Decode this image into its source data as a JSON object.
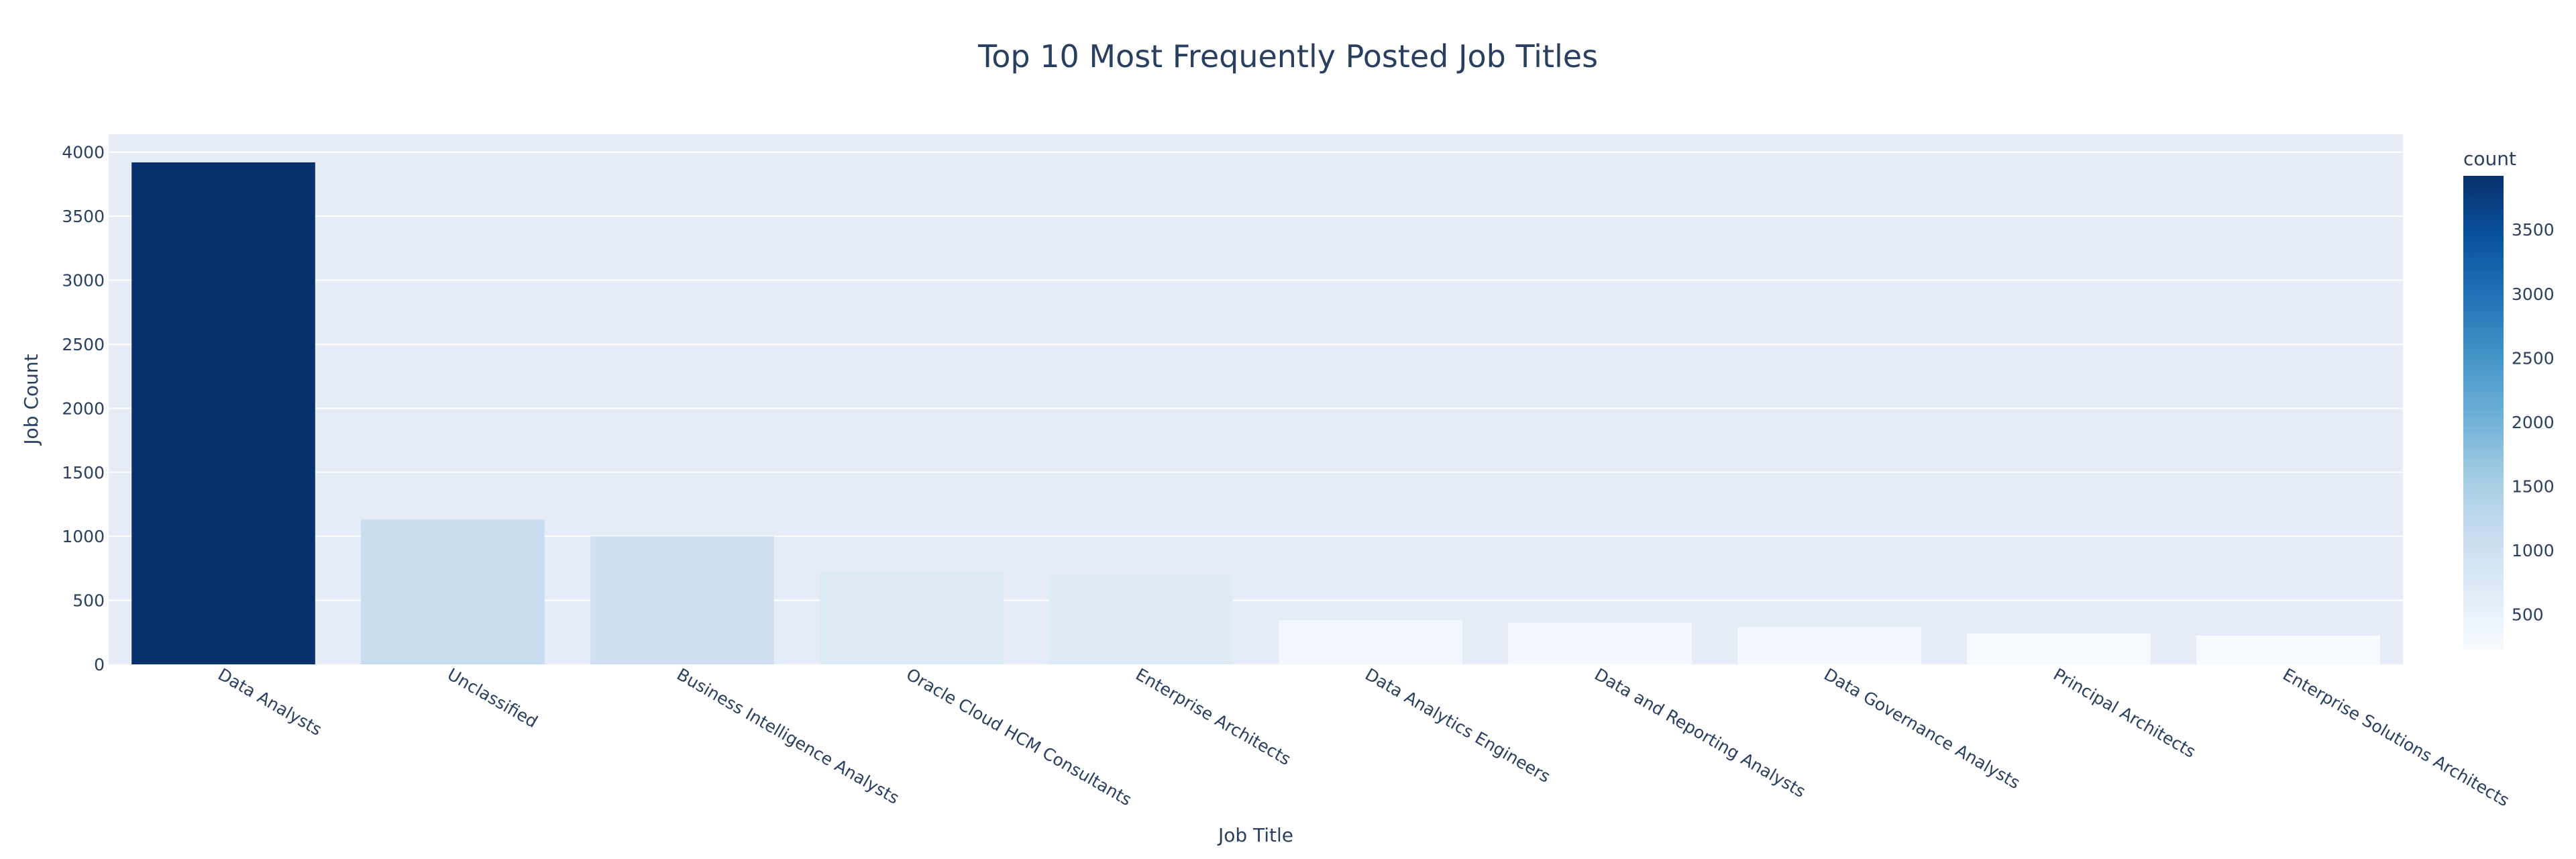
{
  "chart_data": {
    "type": "bar",
    "title": "Top 10 Most Frequently Posted Job Titles",
    "xlabel": "Job Title",
    "ylabel": "Job Count",
    "categories": [
      "Data Analysts",
      "Unclassified",
      "Business Intelligence Analysts",
      "Oracle Cloud HCM Consultants",
      "Enterprise Architects",
      "Data Analytics Engineers",
      "Data and Reporting Analysts",
      "Data Governance Analysts",
      "Principal Architects",
      "Enterprise Solutions Architects"
    ],
    "values": [
      3920,
      1130,
      1000,
      725,
      700,
      345,
      325,
      290,
      240,
      225
    ],
    "ylim": [
      0,
      4140
    ],
    "yticks": [
      0,
      500,
      1000,
      1500,
      2000,
      2500,
      3000,
      3500,
      4000
    ],
    "grid": true,
    "colorbar": {
      "title": "count",
      "colorscale": "Blues",
      "range": [
        225,
        3920
      ],
      "ticks": [
        500,
        1000,
        1500,
        2000,
        2500,
        3000,
        3500
      ]
    },
    "colors": {
      "plot_background": "#E5ECF6",
      "grid": "#FFFFFF",
      "text": "#2a3f5f"
    }
  }
}
